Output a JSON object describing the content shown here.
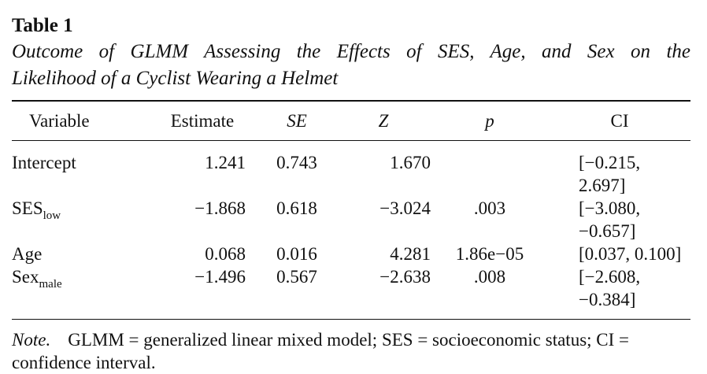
{
  "table": {
    "label": "Table 1",
    "caption_line1": "Outcome of GLMM Assessing the Effects of SES, Age, and Sex on the",
    "caption_line2": "Likelihood of a Cyclist Wearing a Helmet",
    "headers": {
      "variable": "Variable",
      "estimate": "Estimate",
      "se": "SE",
      "z": "Z",
      "p": "p",
      "ci": "CI"
    },
    "rows": [
      {
        "variable": "Intercept",
        "sub": "",
        "estimate": "1.241",
        "se": "0.743",
        "z": "1.670",
        "p": "",
        "ci": "[−0.215, 2.697]"
      },
      {
        "variable": "SES",
        "sub": "low",
        "estimate": "−1.868",
        "se": "0.618",
        "z": "−3.024",
        "p": ".003",
        "ci": "[−3.080, −0.657]"
      },
      {
        "variable": "Age",
        "sub": "",
        "estimate": "0.068",
        "se": "0.016",
        "z": "4.281",
        "p": "1.86e−05",
        "ci": "[0.037, 0.100]"
      },
      {
        "variable": "Sex",
        "sub": "male",
        "estimate": "−1.496",
        "se": "0.567",
        "z": "−2.638",
        "p": ".008",
        "ci": "[−2.608, −0.384]"
      }
    ],
    "note_label": "Note.",
    "note_text": "GLMM = generalized linear mixed model; SES = socioeconomic status; CI =",
    "note_text2": "confidence interval."
  }
}
